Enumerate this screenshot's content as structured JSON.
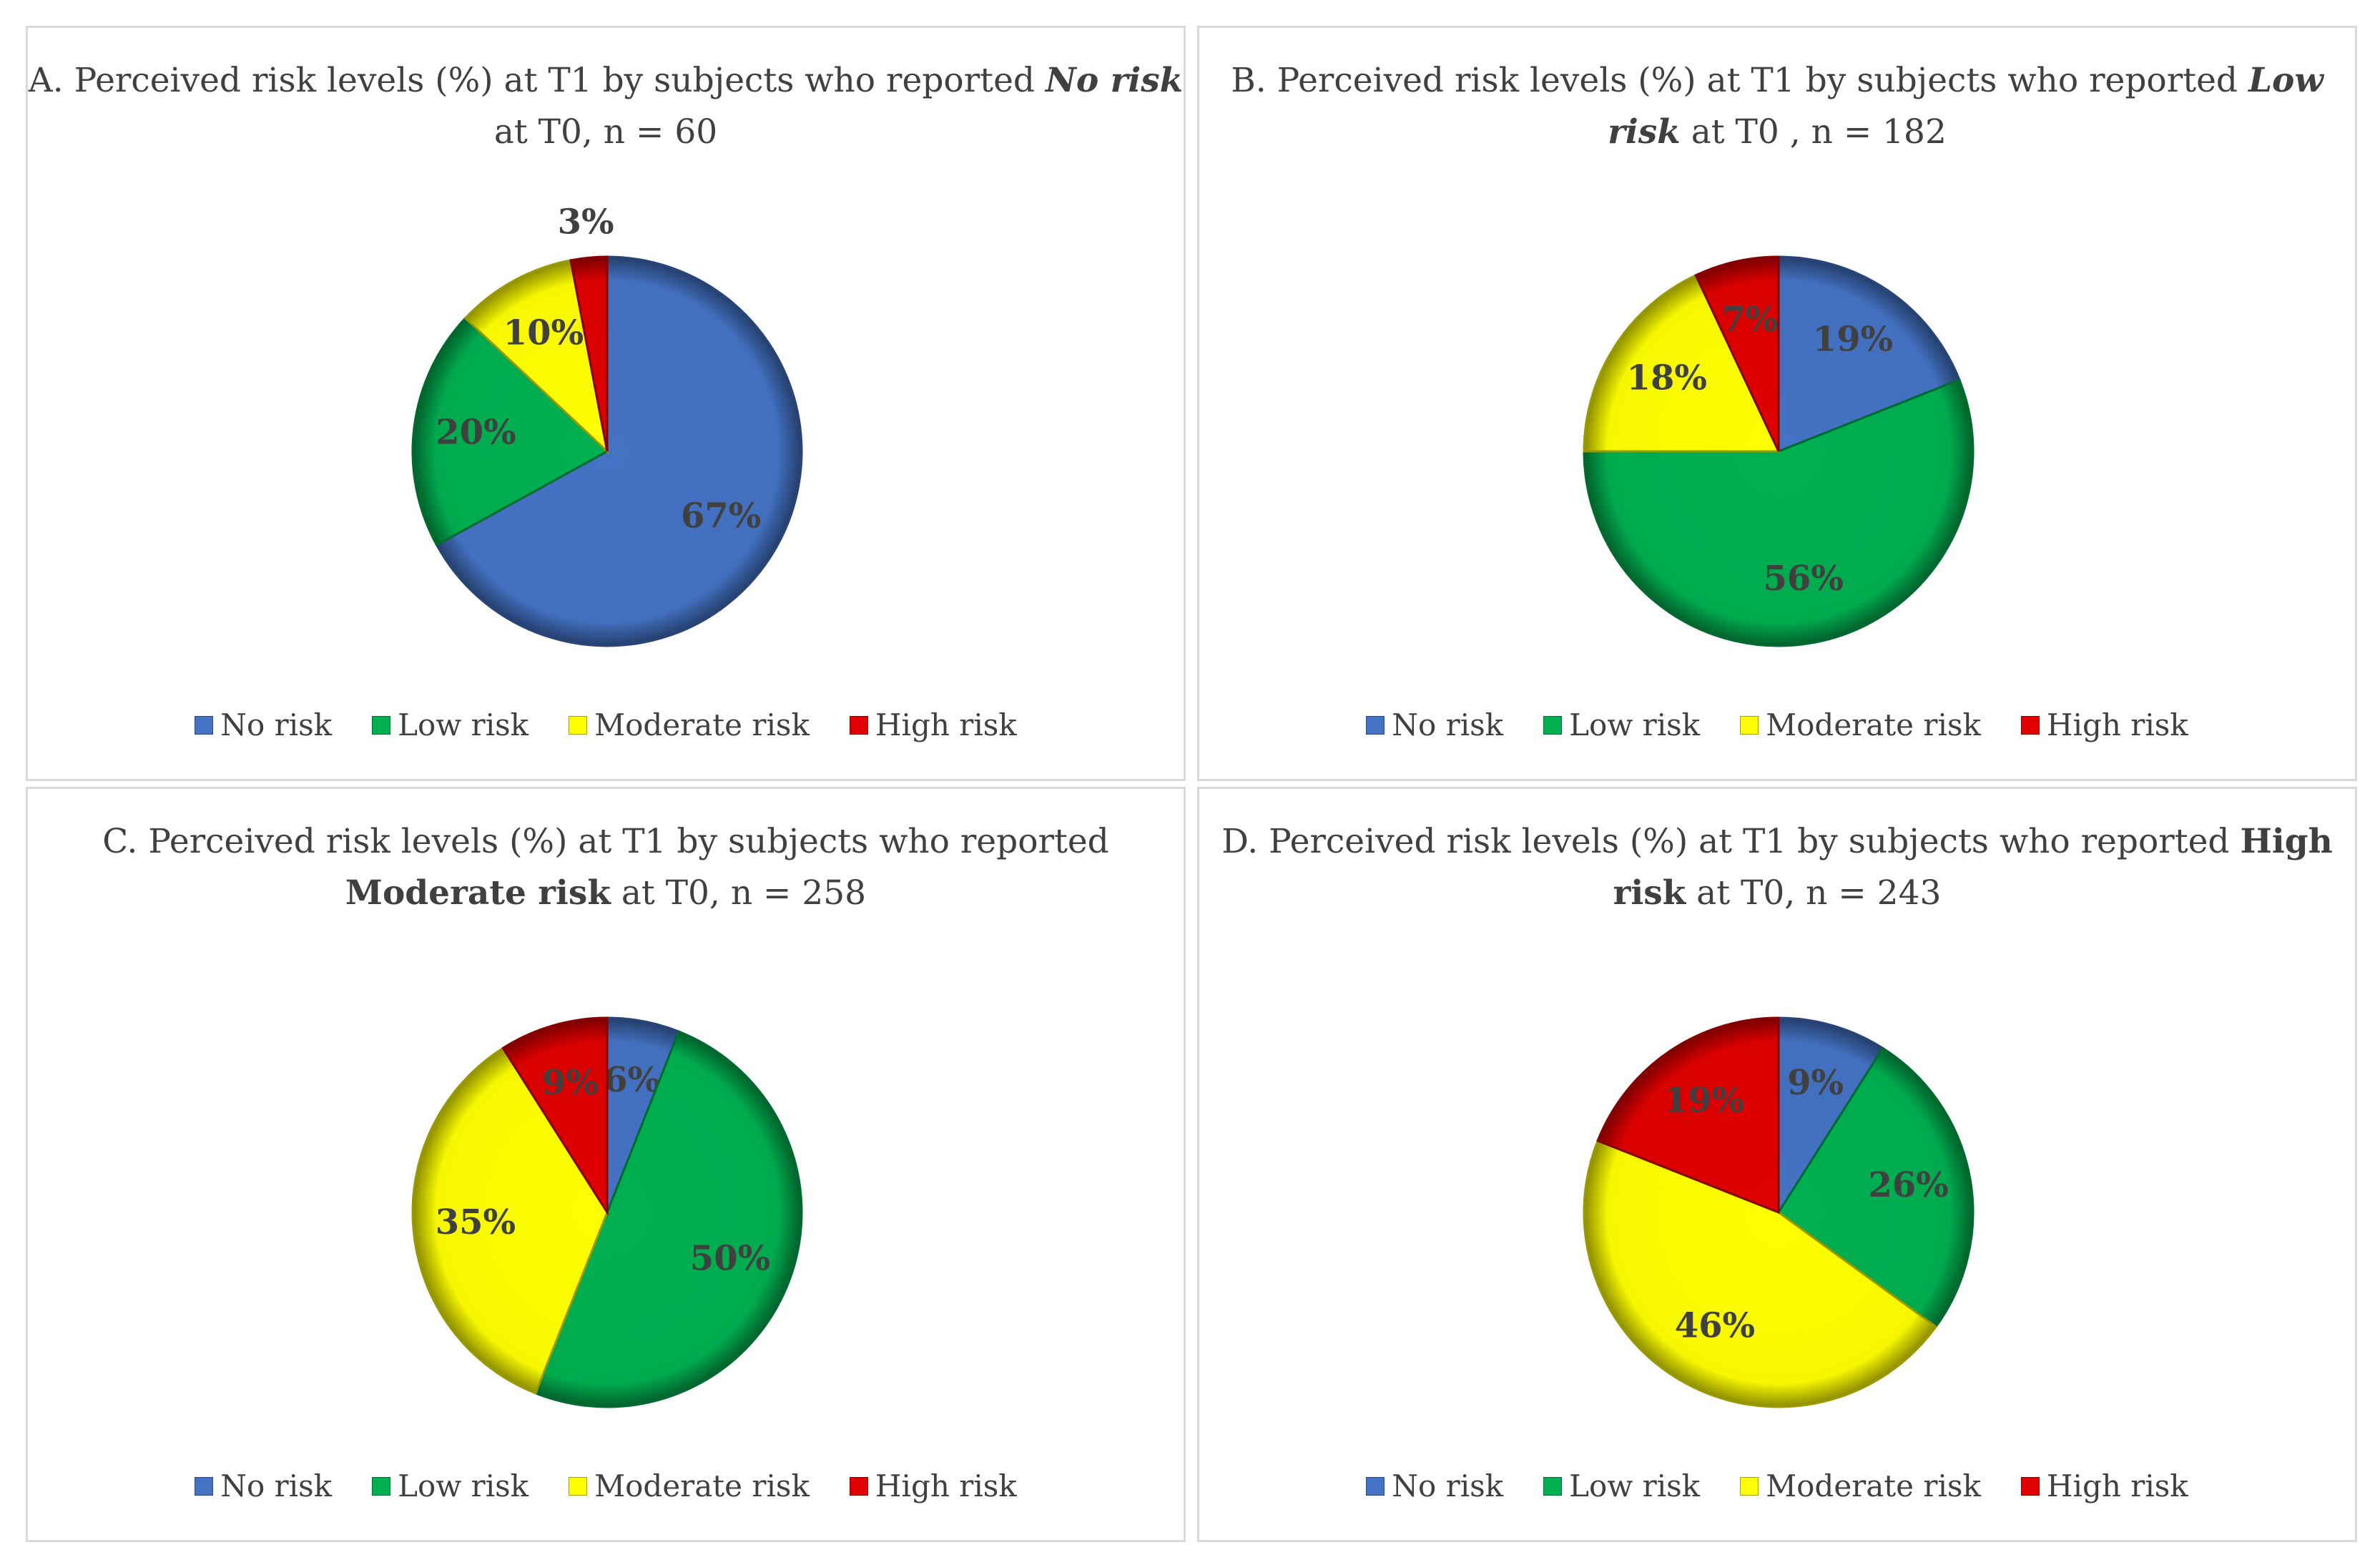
{
  "legend": [
    "No risk",
    "Low risk",
    "Moderate risk",
    "High risk"
  ],
  "colors": {
    "No risk": "#4472C4",
    "Low risk": "#00B050",
    "Moderate risk": "#FFFF00",
    "High risk": "#E00000"
  },
  "chart_data": [
    {
      "type": "pie",
      "title_prefix": "A. Perceived risk levels (%) at T1 by subjects who reported ",
      "title_emphasis": "No risk",
      "title_suffix": " at T0, n = 60",
      "categories": [
        "No risk",
        "Low risk",
        "Moderate risk",
        "High risk"
      ],
      "values": [
        67,
        20,
        10,
        3
      ],
      "labels": [
        "67%",
        "20%",
        "10%",
        "3%"
      ]
    },
    {
      "type": "pie",
      "title_prefix": "B. Perceived risk levels (%) at T1 by subjects who reported ",
      "title_emphasis": "Low risk",
      "title_suffix": " at T0 , n = 182",
      "categories": [
        "No risk",
        "Low risk",
        "Moderate risk",
        "High risk"
      ],
      "values": [
        19,
        56,
        18,
        7
      ],
      "labels": [
        "19%",
        "56%",
        "18%",
        "7%"
      ]
    },
    {
      "type": "pie",
      "title_prefix": "C. Perceived risk levels (%) at T1 by subjects who reported ",
      "title_emphasis": "Moderate risk",
      "title_suffix": " at T0, n = 258",
      "categories": [
        "No risk",
        "Low risk",
        "Moderate risk",
        "High risk"
      ],
      "values": [
        6,
        50,
        35,
        9
      ],
      "labels": [
        "6%",
        "50%",
        "35%",
        "9%"
      ]
    },
    {
      "type": "pie",
      "title_prefix": "D. Perceived risk levels (%) at T1 by subjects who reported ",
      "title_emphasis": "High risk",
      "title_suffix": " at T0, n = 243",
      "categories": [
        "No risk",
        "Low risk",
        "Moderate risk",
        "High risk"
      ],
      "values": [
        9,
        26,
        46,
        19
      ],
      "labels": [
        "9%",
        "26%",
        "46%",
        "19%"
      ]
    }
  ]
}
